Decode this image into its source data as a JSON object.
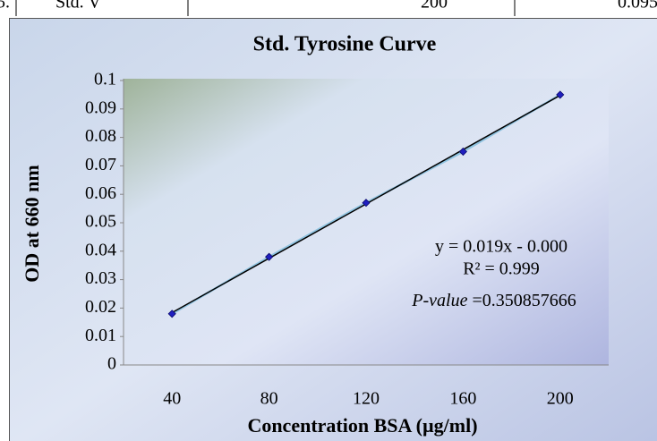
{
  "table": {
    "rows": [
      [
        "5.",
        "Std. V",
        "200",
        "0.095"
      ]
    ]
  },
  "chart_data": {
    "type": "line",
    "title": "Std. Tyrosine Curve",
    "x_label": "Concentration BSA (µg/ml)",
    "y_label": "OD at 660 nm",
    "categories": [
      "40",
      "80",
      "120",
      "160",
      "200"
    ],
    "series": [
      {
        "name": "OD",
        "color": "#1f1fbf",
        "line_color": "#8fc3e0",
        "values": [
          0.018,
          0.038,
          0.057,
          0.075,
          0.095
        ]
      }
    ],
    "trendline": {
      "color": "#000000"
    },
    "ylim": [
      0,
      0.1
    ],
    "yticks": [
      0,
      0.01,
      0.02,
      0.03,
      0.04,
      0.05,
      0.06,
      0.07,
      0.08,
      0.09,
      0.1
    ],
    "grid": false,
    "annotations": [
      "y = 0.019x - 0.000",
      "R² = 0.999"
    ],
    "p_value": {
      "label": "P-value",
      "text": " =0.350857666"
    }
  }
}
